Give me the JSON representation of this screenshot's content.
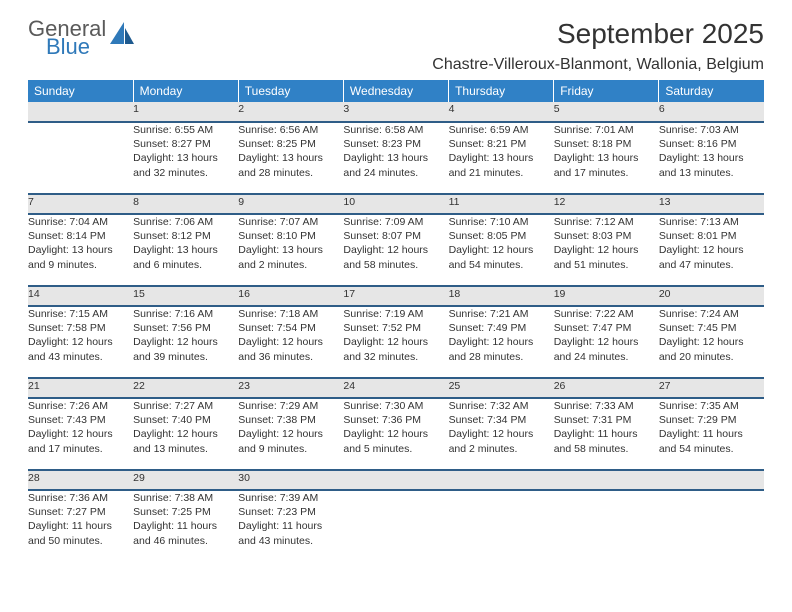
{
  "brand": {
    "name_part1": "General",
    "name_part2": "Blue",
    "colors": {
      "primary": "#2f79b9",
      "gray": "#5a5a5a"
    }
  },
  "header": {
    "title": "September 2025",
    "location": "Chastre-Villeroux-Blanmont, Wallonia, Belgium"
  },
  "theme": {
    "header_bg": "#3081c6",
    "header_text": "#ffffff",
    "daynum_bg": "#e6e6e6",
    "row_border": "#2f5d87",
    "page_bg": "#ffffff",
    "text": "#333333",
    "font_family": "Arial",
    "title_fontsize": 28,
    "location_fontsize": 16,
    "header_cell_fontsize": 12,
    "cell_fontsize": 10.5
  },
  "calendar": {
    "columns": [
      "Sunday",
      "Monday",
      "Tuesday",
      "Wednesday",
      "Thursday",
      "Friday",
      "Saturday"
    ],
    "weeks": [
      {
        "days": [
          {
            "num": "",
            "lines": []
          },
          {
            "num": "1",
            "lines": [
              "Sunrise: 6:55 AM",
              "Sunset: 8:27 PM",
              "Daylight: 13 hours",
              "and 32 minutes."
            ]
          },
          {
            "num": "2",
            "lines": [
              "Sunrise: 6:56 AM",
              "Sunset: 8:25 PM",
              "Daylight: 13 hours",
              "and 28 minutes."
            ]
          },
          {
            "num": "3",
            "lines": [
              "Sunrise: 6:58 AM",
              "Sunset: 8:23 PM",
              "Daylight: 13 hours",
              "and 24 minutes."
            ]
          },
          {
            "num": "4",
            "lines": [
              "Sunrise: 6:59 AM",
              "Sunset: 8:21 PM",
              "Daylight: 13 hours",
              "and 21 minutes."
            ]
          },
          {
            "num": "5",
            "lines": [
              "Sunrise: 7:01 AM",
              "Sunset: 8:18 PM",
              "Daylight: 13 hours",
              "and 17 minutes."
            ]
          },
          {
            "num": "6",
            "lines": [
              "Sunrise: 7:03 AM",
              "Sunset: 8:16 PM",
              "Daylight: 13 hours",
              "and 13 minutes."
            ]
          }
        ]
      },
      {
        "days": [
          {
            "num": "7",
            "lines": [
              "Sunrise: 7:04 AM",
              "Sunset: 8:14 PM",
              "Daylight: 13 hours",
              "and 9 minutes."
            ]
          },
          {
            "num": "8",
            "lines": [
              "Sunrise: 7:06 AM",
              "Sunset: 8:12 PM",
              "Daylight: 13 hours",
              "and 6 minutes."
            ]
          },
          {
            "num": "9",
            "lines": [
              "Sunrise: 7:07 AM",
              "Sunset: 8:10 PM",
              "Daylight: 13 hours",
              "and 2 minutes."
            ]
          },
          {
            "num": "10",
            "lines": [
              "Sunrise: 7:09 AM",
              "Sunset: 8:07 PM",
              "Daylight: 12 hours",
              "and 58 minutes."
            ]
          },
          {
            "num": "11",
            "lines": [
              "Sunrise: 7:10 AM",
              "Sunset: 8:05 PM",
              "Daylight: 12 hours",
              "and 54 minutes."
            ]
          },
          {
            "num": "12",
            "lines": [
              "Sunrise: 7:12 AM",
              "Sunset: 8:03 PM",
              "Daylight: 12 hours",
              "and 51 minutes."
            ]
          },
          {
            "num": "13",
            "lines": [
              "Sunrise: 7:13 AM",
              "Sunset: 8:01 PM",
              "Daylight: 12 hours",
              "and 47 minutes."
            ]
          }
        ]
      },
      {
        "days": [
          {
            "num": "14",
            "lines": [
              "Sunrise: 7:15 AM",
              "Sunset: 7:58 PM",
              "Daylight: 12 hours",
              "and 43 minutes."
            ]
          },
          {
            "num": "15",
            "lines": [
              "Sunrise: 7:16 AM",
              "Sunset: 7:56 PM",
              "Daylight: 12 hours",
              "and 39 minutes."
            ]
          },
          {
            "num": "16",
            "lines": [
              "Sunrise: 7:18 AM",
              "Sunset: 7:54 PM",
              "Daylight: 12 hours",
              "and 36 minutes."
            ]
          },
          {
            "num": "17",
            "lines": [
              "Sunrise: 7:19 AM",
              "Sunset: 7:52 PM",
              "Daylight: 12 hours",
              "and 32 minutes."
            ]
          },
          {
            "num": "18",
            "lines": [
              "Sunrise: 7:21 AM",
              "Sunset: 7:49 PM",
              "Daylight: 12 hours",
              "and 28 minutes."
            ]
          },
          {
            "num": "19",
            "lines": [
              "Sunrise: 7:22 AM",
              "Sunset: 7:47 PM",
              "Daylight: 12 hours",
              "and 24 minutes."
            ]
          },
          {
            "num": "20",
            "lines": [
              "Sunrise: 7:24 AM",
              "Sunset: 7:45 PM",
              "Daylight: 12 hours",
              "and 20 minutes."
            ]
          }
        ]
      },
      {
        "days": [
          {
            "num": "21",
            "lines": [
              "Sunrise: 7:26 AM",
              "Sunset: 7:43 PM",
              "Daylight: 12 hours",
              "and 17 minutes."
            ]
          },
          {
            "num": "22",
            "lines": [
              "Sunrise: 7:27 AM",
              "Sunset: 7:40 PM",
              "Daylight: 12 hours",
              "and 13 minutes."
            ]
          },
          {
            "num": "23",
            "lines": [
              "Sunrise: 7:29 AM",
              "Sunset: 7:38 PM",
              "Daylight: 12 hours",
              "and 9 minutes."
            ]
          },
          {
            "num": "24",
            "lines": [
              "Sunrise: 7:30 AM",
              "Sunset: 7:36 PM",
              "Daylight: 12 hours",
              "and 5 minutes."
            ]
          },
          {
            "num": "25",
            "lines": [
              "Sunrise: 7:32 AM",
              "Sunset: 7:34 PM",
              "Daylight: 12 hours",
              "and 2 minutes."
            ]
          },
          {
            "num": "26",
            "lines": [
              "Sunrise: 7:33 AM",
              "Sunset: 7:31 PM",
              "Daylight: 11 hours",
              "and 58 minutes."
            ]
          },
          {
            "num": "27",
            "lines": [
              "Sunrise: 7:35 AM",
              "Sunset: 7:29 PM",
              "Daylight: 11 hours",
              "and 54 minutes."
            ]
          }
        ]
      },
      {
        "days": [
          {
            "num": "28",
            "lines": [
              "Sunrise: 7:36 AM",
              "Sunset: 7:27 PM",
              "Daylight: 11 hours",
              "and 50 minutes."
            ]
          },
          {
            "num": "29",
            "lines": [
              "Sunrise: 7:38 AM",
              "Sunset: 7:25 PM",
              "Daylight: 11 hours",
              "and 46 minutes."
            ]
          },
          {
            "num": "30",
            "lines": [
              "Sunrise: 7:39 AM",
              "Sunset: 7:23 PM",
              "Daylight: 11 hours",
              "and 43 minutes."
            ]
          },
          {
            "num": "",
            "lines": []
          },
          {
            "num": "",
            "lines": []
          },
          {
            "num": "",
            "lines": []
          },
          {
            "num": "",
            "lines": []
          }
        ]
      }
    ]
  }
}
